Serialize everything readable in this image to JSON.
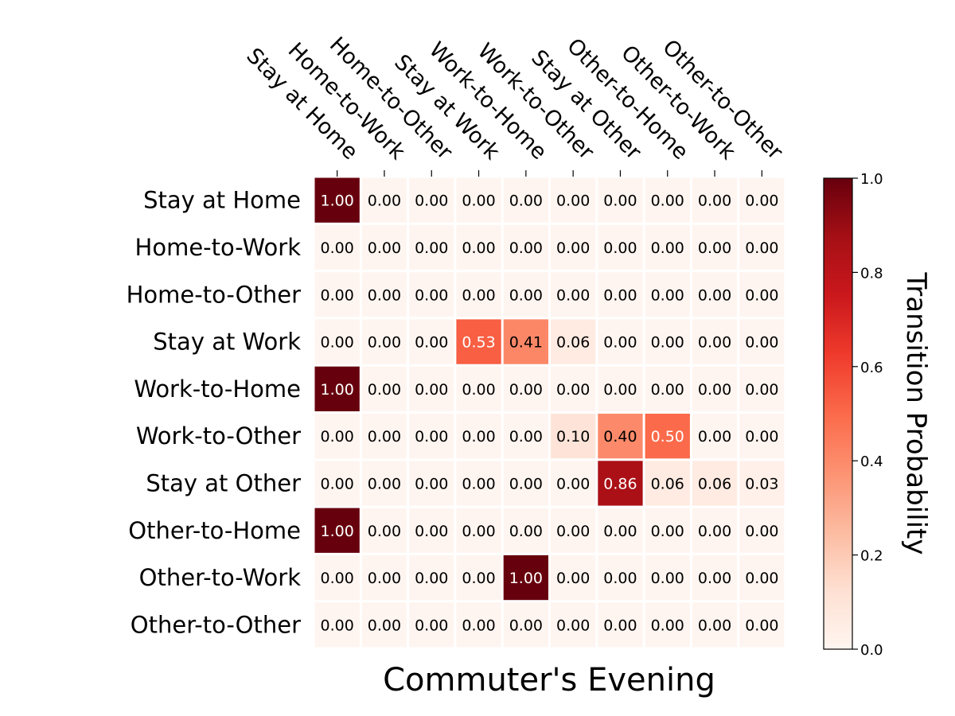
{
  "chart_data": {
    "type": "heatmap",
    "title": "",
    "xlabel": "Commuter's Evening",
    "ylabel": "",
    "x_categories": [
      "Stay at Home",
      "Home-to-Work",
      "Home-to-Other",
      "Stay at Work",
      "Work-to-Home",
      "Work-to-Other",
      "Stay at Other",
      "Other-to-Home",
      "Other-to-Work",
      "Other-to-Other"
    ],
    "y_categories": [
      "Stay at Home",
      "Home-to-Work",
      "Home-to-Other",
      "Stay at Work",
      "Work-to-Home",
      "Work-to-Other",
      "Stay at Other",
      "Other-to-Home",
      "Other-to-Work",
      "Other-to-Other"
    ],
    "values": [
      [
        1.0,
        0.0,
        0.0,
        0.0,
        0.0,
        0.0,
        0.0,
        0.0,
        0.0,
        0.0
      ],
      [
        0.0,
        0.0,
        0.0,
        0.0,
        0.0,
        0.0,
        0.0,
        0.0,
        0.0,
        0.0
      ],
      [
        0.0,
        0.0,
        0.0,
        0.0,
        0.0,
        0.0,
        0.0,
        0.0,
        0.0,
        0.0
      ],
      [
        0.0,
        0.0,
        0.0,
        0.53,
        0.41,
        0.06,
        0.0,
        0.0,
        0.0,
        0.0
      ],
      [
        1.0,
        0.0,
        0.0,
        0.0,
        0.0,
        0.0,
        0.0,
        0.0,
        0.0,
        0.0
      ],
      [
        0.0,
        0.0,
        0.0,
        0.0,
        0.0,
        0.1,
        0.4,
        0.5,
        0.0,
        0.0
      ],
      [
        0.0,
        0.0,
        0.0,
        0.0,
        0.0,
        0.0,
        0.86,
        0.06,
        0.06,
        0.03
      ],
      [
        1.0,
        0.0,
        0.0,
        0.0,
        0.0,
        0.0,
        0.0,
        0.0,
        0.0,
        0.0
      ],
      [
        0.0,
        0.0,
        0.0,
        0.0,
        1.0,
        0.0,
        0.0,
        0.0,
        0.0,
        0.0
      ],
      [
        0.0,
        0.0,
        0.0,
        0.0,
        0.0,
        0.0,
        0.0,
        0.0,
        0.0,
        0.0
      ]
    ],
    "value_format": "0.00",
    "colorscale": "Reds",
    "colorbar": {
      "label": "Transition Probability",
      "range": [
        0.0,
        1.0
      ],
      "ticks": [
        0.0,
        0.2,
        0.4,
        0.6,
        0.8,
        1.0
      ],
      "tick_labels": [
        "0.0",
        "0.2",
        "0.4",
        "0.6",
        "0.8",
        "1.0"
      ]
    },
    "colors": {
      "grid_line": "#ffffff",
      "low": "#fff5f0",
      "high": "#67000d"
    },
    "grid": true,
    "x_tick_position": "top"
  }
}
